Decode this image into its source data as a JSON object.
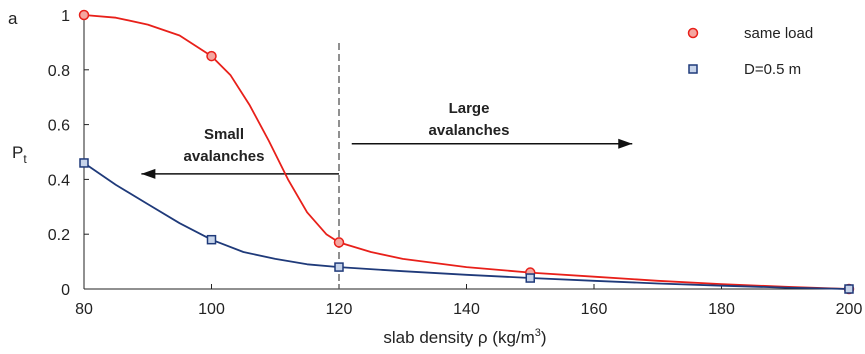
{
  "chart_data": {
    "type": "line",
    "panel_label": "a",
    "xlabel": "slab density ρ (kg/m3)",
    "xlabel_parts": {
      "main": "slab density ρ (kg/m",
      "sup": "3",
      "close": ")"
    },
    "ylabel": "Pt",
    "ylabel_parts": {
      "main": "P",
      "sub": "t"
    },
    "xlim": [
      80,
      200
    ],
    "ylim": [
      0,
      1
    ],
    "xticks": [
      80,
      100,
      120,
      140,
      160,
      180,
      200
    ],
    "yticks": [
      0,
      0.2,
      0.4,
      0.6,
      0.8,
      1
    ],
    "ytick_labels": [
      "0",
      "0.2",
      "0.4",
      "0.6",
      "0.8",
      "1"
    ],
    "grid": false,
    "legend_position": "top-right",
    "series": [
      {
        "name": "same load",
        "color": "#e8201a",
        "marker": "circle",
        "marker_fill": "#f4a6a0",
        "points": [
          {
            "x": 80,
            "y": 1.0
          },
          {
            "x": 100,
            "y": 0.85
          },
          {
            "x": 120,
            "y": 0.17
          },
          {
            "x": 150,
            "y": 0.06
          },
          {
            "x": 200,
            "y": 0.0
          }
        ],
        "curve": [
          [
            80,
            1.0
          ],
          [
            85,
            0.99
          ],
          [
            90,
            0.965
          ],
          [
            95,
            0.925
          ],
          [
            100,
            0.85
          ],
          [
            103,
            0.78
          ],
          [
            106,
            0.67
          ],
          [
            109,
            0.54
          ],
          [
            112,
            0.4
          ],
          [
            115,
            0.28
          ],
          [
            118,
            0.2
          ],
          [
            120,
            0.17
          ],
          [
            125,
            0.135
          ],
          [
            130,
            0.11
          ],
          [
            140,
            0.08
          ],
          [
            150,
            0.06
          ],
          [
            160,
            0.045
          ],
          [
            170,
            0.03
          ],
          [
            180,
            0.018
          ],
          [
            190,
            0.008
          ],
          [
            200,
            0.0
          ]
        ]
      },
      {
        "name": "D=0.5 m",
        "color": "#1f3a7a",
        "marker": "square",
        "marker_fill": "#c7d4ea",
        "points": [
          {
            "x": 80,
            "y": 0.46
          },
          {
            "x": 100,
            "y": 0.18
          },
          {
            "x": 120,
            "y": 0.08
          },
          {
            "x": 150,
            "y": 0.04
          },
          {
            "x": 200,
            "y": 0.0
          }
        ],
        "curve": [
          [
            80,
            0.46
          ],
          [
            85,
            0.38
          ],
          [
            90,
            0.31
          ],
          [
            95,
            0.24
          ],
          [
            100,
            0.18
          ],
          [
            105,
            0.135
          ],
          [
            110,
            0.11
          ],
          [
            115,
            0.09
          ],
          [
            120,
            0.08
          ],
          [
            130,
            0.065
          ],
          [
            140,
            0.052
          ],
          [
            150,
            0.04
          ],
          [
            160,
            0.03
          ],
          [
            170,
            0.02
          ],
          [
            180,
            0.012
          ],
          [
            190,
            0.005
          ],
          [
            200,
            0.0
          ]
        ]
      }
    ],
    "divider": {
      "x": 120,
      "style": "dashed"
    },
    "annotations": [
      {
        "id": "small",
        "lines": [
          "Small",
          "avalanches"
        ],
        "arrow_direction": "left",
        "arrow_x": [
          120,
          89
        ],
        "arrow_y": 0.42
      },
      {
        "id": "large",
        "lines": [
          "Large",
          "avalanches"
        ],
        "arrow_direction": "right",
        "arrow_x": [
          122,
          166
        ],
        "arrow_y": 0.53
      }
    ]
  }
}
